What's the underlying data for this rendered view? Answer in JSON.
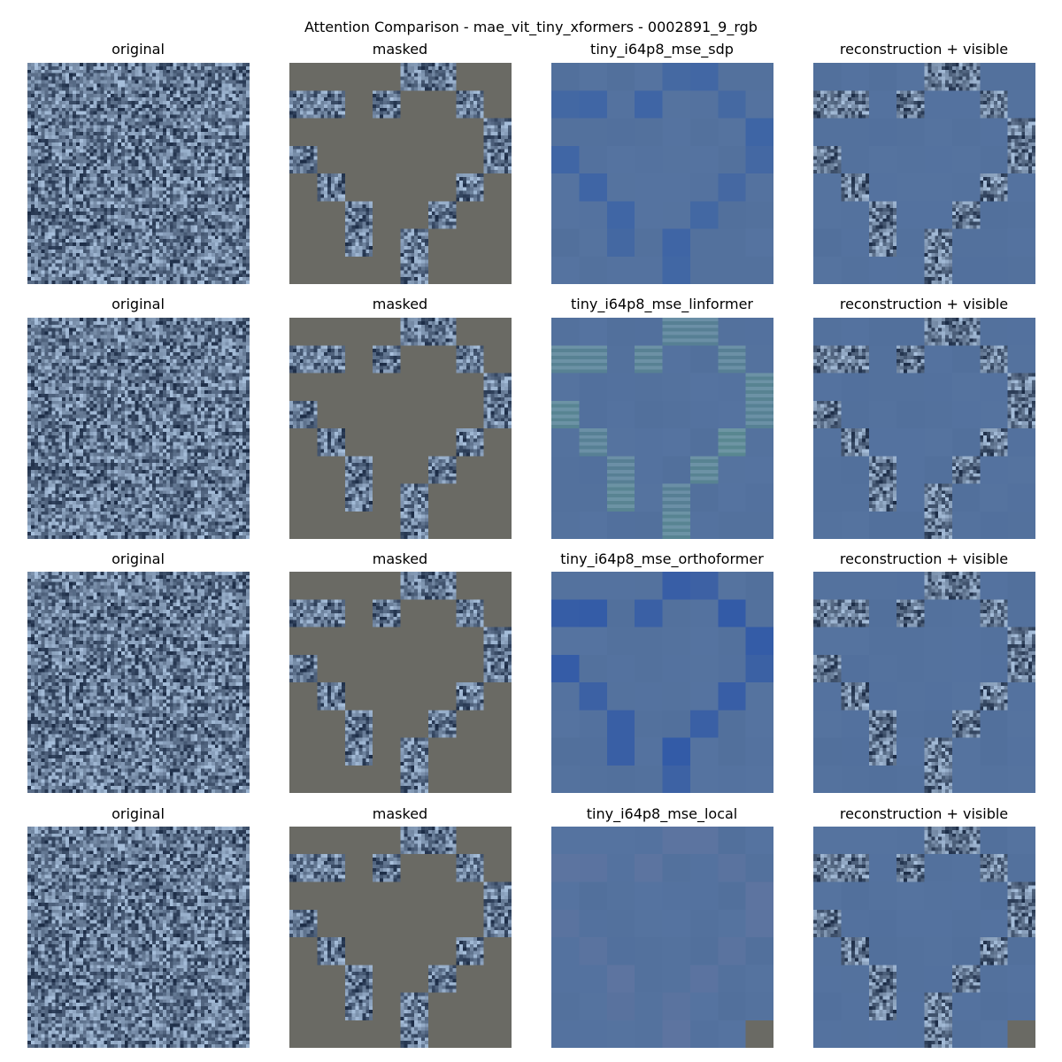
{
  "title": "Attention Comparison - mae_vit_tiny_xformers - 0002891_9_rgb",
  "column_labels": {
    "original": "original",
    "masked": "masked",
    "overlay": "reconstruction + visible"
  },
  "rows": [
    {
      "model": "tiny_i64p8_mse_sdp",
      "tint": "#3b63a6"
    },
    {
      "model": "tiny_i64p8_mse_linformer",
      "tint": "#5a8a8e"
    },
    {
      "model": "tiny_i64p8_mse_orthoformer",
      "tint": "#2f58a8"
    },
    {
      "model": "tiny_i64p8_mse_local",
      "tint": "#5e74a0"
    }
  ],
  "colors": {
    "mask_gray": "#6a6a64",
    "recon_base": "#52709c",
    "noise_dark": "#1a2a44",
    "noise_light": "#a8c0dc"
  },
  "mask": {
    "grid_size": 8,
    "visible_patches": [
      [
        0,
        4
      ],
      [
        0,
        5
      ],
      [
        1,
        0
      ],
      [
        1,
        1
      ],
      [
        1,
        3
      ],
      [
        1,
        6
      ],
      [
        2,
        7
      ],
      [
        3,
        0
      ],
      [
        3,
        7
      ],
      [
        4,
        1
      ],
      [
        4,
        6
      ],
      [
        5,
        2
      ],
      [
        5,
        5
      ],
      [
        6,
        2
      ],
      [
        6,
        4
      ],
      [
        7,
        4
      ]
    ]
  }
}
